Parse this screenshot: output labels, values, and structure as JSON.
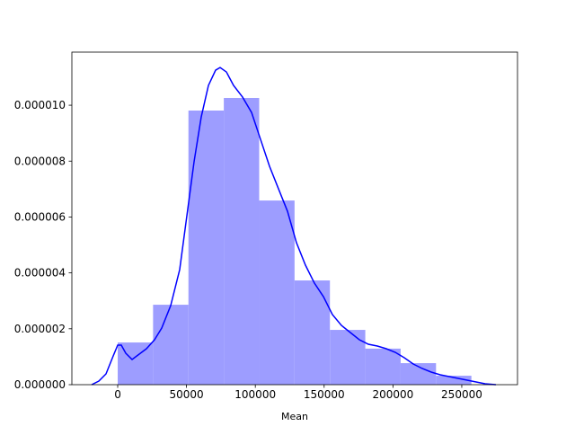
{
  "chart_data": {
    "type": "histogram",
    "xlabel": "Mean",
    "bins": [
      0,
      25700,
      51400,
      77100,
      102800,
      128500,
      154200,
      179900,
      205600,
      231300,
      257000
    ],
    "values": [
      1.51e-06,
      2.86e-06,
      9.81e-06,
      1.026e-05,
      6.59e-06,
      3.73e-06,
      1.96e-06,
      1.29e-06,
      7.7e-07,
      3.2e-07
    ],
    "color": "#9d9dff",
    "kde": {
      "color": "#0000ff",
      "x": [
        -18930,
        -13710,
        -8490,
        -3260,
        0,
        2610,
        5870,
        10440,
        15660,
        20880,
        26760,
        31980,
        38500,
        45040,
        50260,
        55480,
        60700,
        65920,
        71140,
        74410,
        78980,
        84200,
        90730,
        97250,
        103780,
        110310,
        116830,
        123360,
        129890,
        136420,
        142940,
        149470,
        156000,
        162520,
        169050,
        175580,
        182100,
        188630,
        195160,
        201680,
        208210,
        214740,
        221260,
        227790,
        234320,
        240840,
        247370,
        253900,
        260420,
        266950,
        274780
      ],
      "values": [
        0,
        1.29e-07,
        3.86e-07,
        1.029e-06,
        1.415e-06,
        1.415e-06,
        1.125e-06,
        9e-07,
        1.093e-06,
        1.286e-06,
        1.608e-06,
        2.026e-06,
        2.83e-06,
        4.116e-06,
        6.045e-06,
        7.974e-06,
        9.582e-06,
        1.0707e-05,
        1.1254e-05,
        1.135e-05,
        1.119e-05,
        1.0707e-05,
        1.0289e-05,
        9.743e-06,
        8.778e-06,
        7.814e-06,
        7.01e-06,
        6.206e-06,
        5.08e-06,
        4.277e-06,
        3.633e-06,
        3.151e-06,
        2.508e-06,
        2.122e-06,
        1.865e-06,
        1.608e-06,
        1.447e-06,
        1.383e-06,
        1.286e-06,
        1.158e-06,
        9.65e-07,
        7.4e-07,
        5.79e-07,
        4.5e-07,
        3.54e-07,
        2.89e-07,
        2.25e-07,
        1.61e-07,
        9.6e-08,
        3.2e-08,
        0
      ]
    },
    "xlim": [
      -33300,
      290500
    ],
    "ylim": [
      0,
      1.19e-05
    ],
    "xticks": [
      0,
      50000,
      100000,
      150000,
      200000,
      250000
    ],
    "yticks": [
      {
        "value": 0,
        "label": "0.000000"
      },
      {
        "value": 2e-06,
        "label": "0.000002"
      },
      {
        "value": 4e-06,
        "label": "0.000004"
      },
      {
        "value": 6e-06,
        "label": "0.000006"
      },
      {
        "value": 8e-06,
        "label": "0.000008"
      },
      {
        "value": 1e-05,
        "label": "0.000010"
      }
    ]
  }
}
